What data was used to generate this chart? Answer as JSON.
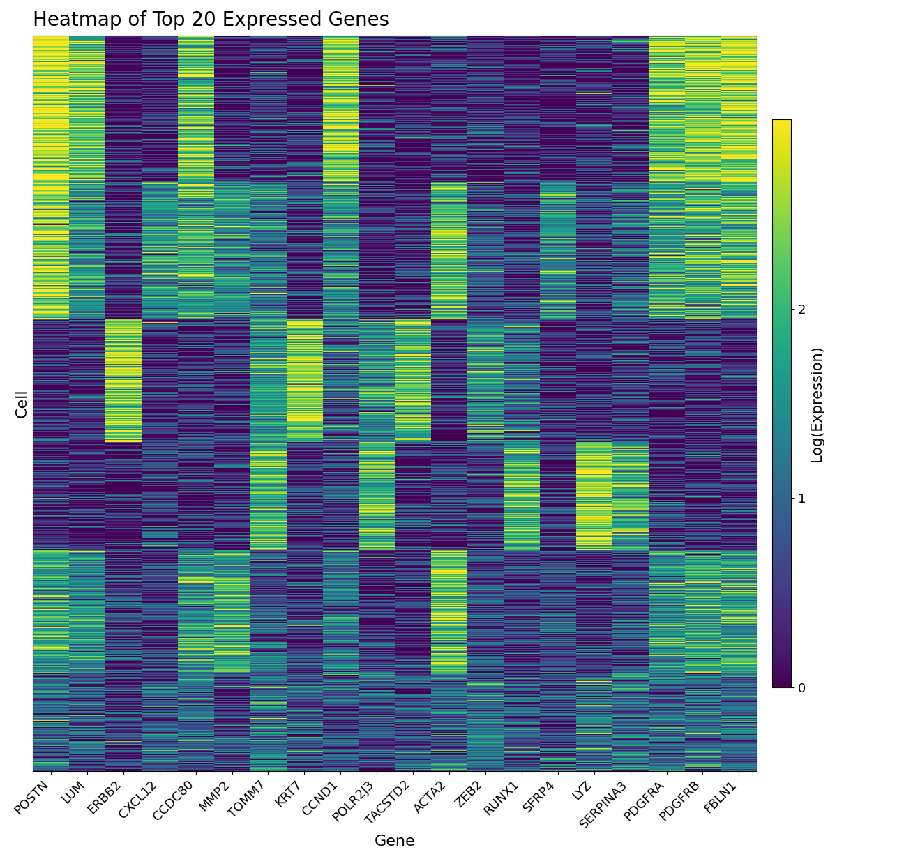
{
  "title": "Heatmap of Top 20 Expressed Genes",
  "genes": [
    "POSTN",
    "LUM",
    "ERBB2",
    "CXCL12",
    "CCDC80",
    "MMP2",
    "TOMM7",
    "KRT7",
    "CCND1",
    "POLR2J3",
    "TACSTD2",
    "ACTA2",
    "ZEB2",
    "RUNX1",
    "SFRP4",
    "LYZ",
    "SERPINA3",
    "PDGFRA",
    "PDGFRB",
    "FBLN1"
  ],
  "xlabel": "Gene",
  "ylabel": "Cell",
  "colorbar_label": "Log(Expression)",
  "colorbar_ticks": [
    0,
    1,
    2
  ],
  "vmin": 0,
  "vmax": 3,
  "cmap": "viridis",
  "n_cells": 1500,
  "figsize": [
    12.86,
    12.32
  ],
  "dpi": 100,
  "title_fontsize": 20,
  "axis_label_fontsize": 16,
  "tick_fontsize": 13,
  "colorbar_fontsize": 15,
  "background_color": "#ffffff",
  "seed": 42,
  "gene_means": [
    2.4,
    1.8,
    0.8,
    0.9,
    1.6,
    0.7,
    1.1,
    1.0,
    1.9,
    0.6,
    0.5,
    1.3,
    0.9,
    0.8,
    0.7,
    1.5,
    1.0,
    1.8,
    1.9,
    2.1
  ],
  "gene_stds": [
    0.9,
    1.0,
    1.0,
    1.0,
    1.0,
    1.0,
    1.0,
    1.1,
    1.0,
    1.0,
    1.0,
    1.0,
    1.0,
    1.0,
    1.0,
    1.0,
    1.0,
    1.0,
    1.0,
    0.9
  ]
}
